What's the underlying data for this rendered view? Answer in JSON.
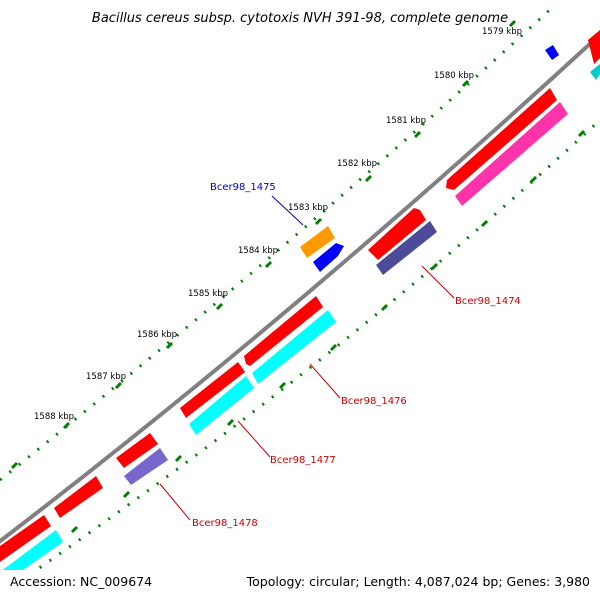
{
  "title": "Bacillus cereus subsp. cytotoxis NVH 391-98, complete genome",
  "footer": {
    "accession": "Accession: NC_009674",
    "summary": "Topology: circular; Length: 4,087,024 bp; Genes: 3,980"
  },
  "ticks": [
    "1579 kbp",
    "1580 kbp",
    "1581 kbp",
    "1582 kbp",
    "1583 kbp",
    "1584 kbp",
    "1585 kbp",
    "1586 kbp",
    "1587 kbp",
    "1588 kbp"
  ],
  "gene_labels": [
    {
      "name": "Bcer98_1475",
      "color": "#0000cc"
    },
    {
      "name": "Bcer98_1474",
      "color": "#cc0000"
    },
    {
      "name": "Bcer98_1476",
      "color": "#cc0000"
    },
    {
      "name": "Bcer98_1477",
      "color": "#cc0000"
    },
    {
      "name": "Bcer98_1478",
      "color": "#cc0000"
    }
  ],
  "colors": {
    "backbone": "#808080",
    "cds": "#ff0000",
    "cds_other": "#0000ff",
    "highlight": "#ff9900",
    "cyan": "#00ffff",
    "magenta": "#ff33aa",
    "navy": "#4b4b99",
    "lavender": "#7766cc",
    "tick_dots": "#008000"
  }
}
